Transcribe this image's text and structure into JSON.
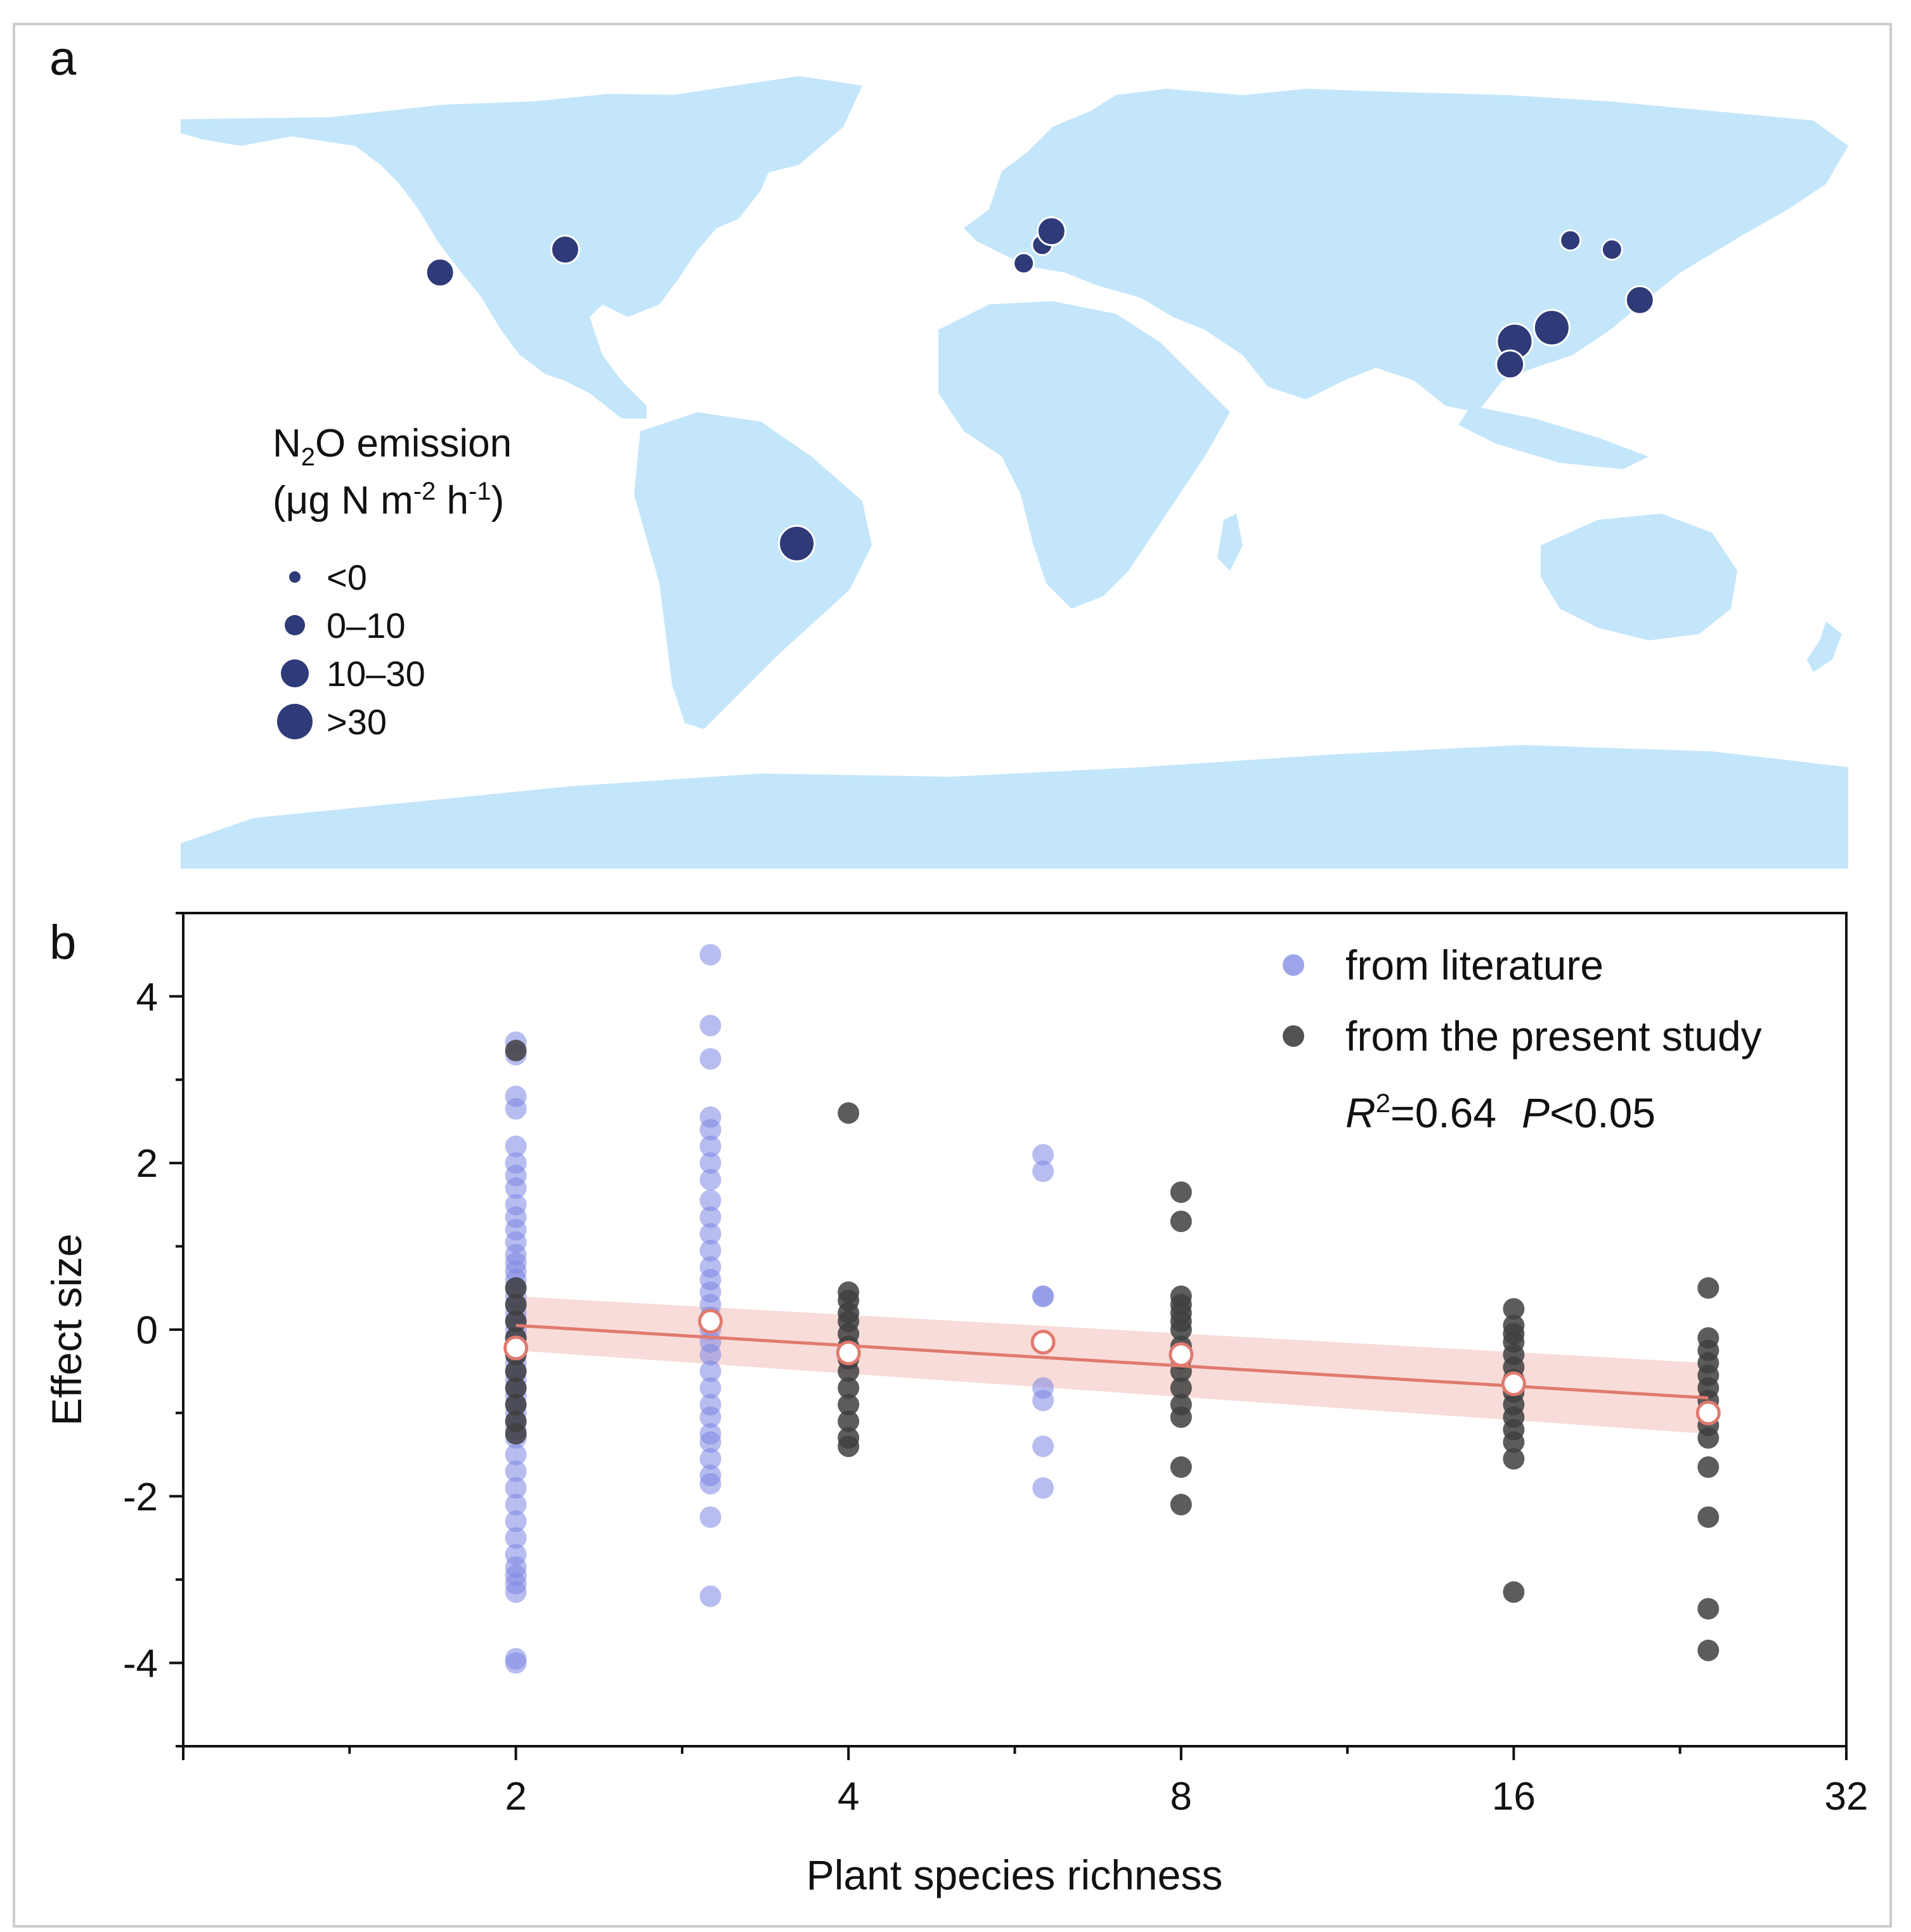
{
  "panel_a": {
    "label": "a",
    "legend": {
      "title_main": "N",
      "title_sub": "2",
      "title_rest": "O emission",
      "unit_open": "(μg N m",
      "unit_sup1": "-2",
      "unit_mid": " h",
      "unit_sup2": "-1",
      "unit_close": ")",
      "items": [
        {
          "label": "<0",
          "size": 0
        },
        {
          "label": "0–10",
          "size": 1
        },
        {
          "label": "10–30",
          "size": 2
        },
        {
          "label": ">30",
          "size": 3
        }
      ]
    },
    "colors": {
      "land": "#c3e6fb",
      "site": "#2f3a78",
      "site_ring": "#ffffff"
    },
    "sites": [
      {
        "lon": -124,
        "lat": 44,
        "size": 2
      },
      {
        "lon": -97,
        "lat": 49,
        "size": 2
      },
      {
        "lon": 2,
        "lat": 46,
        "size": 1
      },
      {
        "lon": 6,
        "lat": 50,
        "size": 1
      },
      {
        "lon": 8,
        "lat": 53,
        "size": 2
      },
      {
        "lon": 108,
        "lat": 29,
        "size": 3
      },
      {
        "lon": 107,
        "lat": 24,
        "size": 2
      },
      {
        "lon": 116,
        "lat": 32,
        "size": 3
      },
      {
        "lon": 120,
        "lat": 51,
        "size": 1
      },
      {
        "lon": 129,
        "lat": 49,
        "size": 1
      },
      {
        "lon": 135,
        "lat": 38,
        "size": 2
      },
      {
        "lon": -47,
        "lat": -15,
        "size": 3
      }
    ]
  },
  "panel_b": {
    "label": "b"
  },
  "chart_data": {
    "type": "scatter",
    "xlabel": "Plant species richness",
    "ylabel": "Effect size",
    "xscale": "log2",
    "xlim": [
      1,
      32
    ],
    "ylim": [
      -5,
      5
    ],
    "xticks": [
      2,
      4,
      8,
      16,
      32
    ],
    "yticks": [
      -4,
      -2,
      0,
      2,
      4
    ],
    "legend_position": "top-right",
    "annotation": {
      "r2_prefix": "R",
      "r2_sup": "2",
      "r2_value": "=0.64",
      "p_prefix": "P",
      "p_value": "<0.05"
    },
    "series": [
      {
        "name": "from literature",
        "color": "#7e86e4",
        "points": [
          {
            "x": 2,
            "y": [
              3.45,
              3.3,
              2.8,
              2.65,
              2.2,
              2.0,
              1.85,
              1.7,
              1.5,
              1.35,
              1.2,
              1.05,
              0.9,
              0.8,
              0.7,
              0.6,
              0.5,
              0.4,
              0.3,
              0.2,
              0.1,
              0.0,
              -0.1,
              -0.2,
              -0.3,
              -0.4,
              -0.5,
              -0.6,
              -0.7,
              -0.8,
              -0.9,
              -1.0,
              -1.1,
              -1.2,
              -1.3,
              -1.5,
              -1.7,
              -1.9,
              -2.1,
              -2.3,
              -2.5,
              -2.7,
              -2.85,
              -2.95,
              -3.05,
              -3.15,
              -3.95,
              -4.0
            ]
          },
          {
            "x": 3,
            "y": [
              4.5,
              3.65,
              3.25,
              2.55,
              2.4,
              2.2,
              2.0,
              1.8,
              1.55,
              1.35,
              1.15,
              0.95,
              0.75,
              0.6,
              0.45,
              0.3,
              0.15,
              0.0,
              -0.15,
              -0.3,
              -0.5,
              -0.7,
              -0.9,
              -1.05,
              -1.25,
              -1.35,
              -1.55,
              -1.75,
              -1.85,
              -2.25,
              -3.2
            ]
          },
          {
            "x": 6,
            "y": [
              2.1,
              1.9,
              0.4,
              0.4,
              -0.7,
              -0.85,
              -1.4,
              -1.9
            ]
          }
        ]
      },
      {
        "name": "from the present study",
        "color": "#404040",
        "points": [
          {
            "x": 2,
            "y": [
              3.35,
              0.5,
              0.3,
              0.1,
              -0.1,
              -0.3,
              -0.5,
              -0.7,
              -0.9,
              -1.1,
              -1.25
            ]
          },
          {
            "x": 4,
            "y": [
              2.6,
              0.45,
              0.35,
              0.2,
              0.1,
              -0.05,
              -0.2,
              -0.35,
              -0.5,
              -0.7,
              -0.9,
              -1.1,
              -1.3,
              -1.4
            ]
          },
          {
            "x": 8,
            "y": [
              1.65,
              1.3,
              0.4,
              0.3,
              0.2,
              0.1,
              0.0,
              -0.2,
              -0.35,
              -0.5,
              -0.7,
              -0.9,
              -1.05,
              -1.65,
              -2.1
            ]
          },
          {
            "x": 16,
            "y": [
              0.25,
              0.05,
              -0.05,
              -0.15,
              -0.3,
              -0.45,
              -0.6,
              -0.75,
              -0.9,
              -1.05,
              -1.2,
              -1.35,
              -1.55,
              -3.15
            ]
          },
          {
            "x": 24,
            "y": [
              0.5,
              -0.1,
              -0.25,
              -0.4,
              -0.55,
              -0.7,
              -0.85,
              -1.0,
              -1.15,
              -1.3,
              -1.65,
              -2.25,
              -3.35,
              -3.85
            ]
          }
        ]
      }
    ],
    "means": [
      {
        "x": 2,
        "y": -0.22
      },
      {
        "x": 3,
        "y": 0.1
      },
      {
        "x": 4,
        "y": -0.28
      },
      {
        "x": 6,
        "y": -0.15
      },
      {
        "x": 8,
        "y": -0.3
      },
      {
        "x": 16,
        "y": -0.65
      },
      {
        "x": 24,
        "y": -1.0
      }
    ],
    "fit": {
      "color": "#e07a6e",
      "band_color": "#f4c5c0",
      "x": [
        2,
        24
      ],
      "y": [
        0.05,
        -0.82
      ],
      "band_lower": [
        -0.25,
        -1.25
      ],
      "band_upper": [
        0.4,
        -0.4
      ]
    }
  }
}
